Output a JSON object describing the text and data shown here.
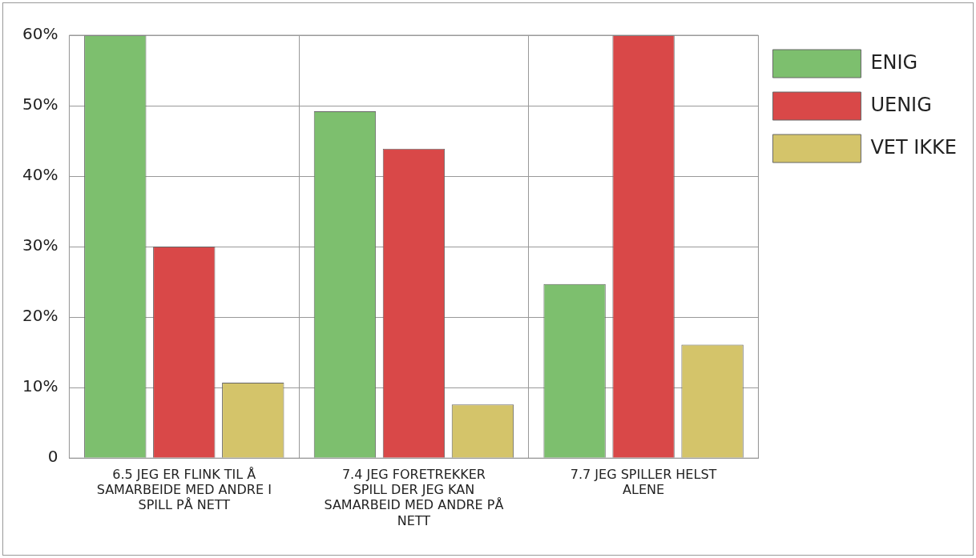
{
  "chart_data": {
    "type": "bar",
    "categories": [
      "6.5 JEG ER FLINK TIL Å SAMARBEIDE MED ANDRE I SPILL PÅ NETT",
      "7.4 JEG FORETREKKER SPILL DER JEG KAN SAMARBEID MED ANDRE PÅ NETT",
      "7.7 JEG SPILLER HELST ALENE"
    ],
    "series": [
      {
        "name": "ENIG",
        "color": "#7dbf6e",
        "values": [
          60,
          49.2,
          24.7
        ]
      },
      {
        "name": "UENIG",
        "color": "#d94848",
        "values": [
          30,
          43.9,
          60
        ]
      },
      {
        "name": "VET IKKE",
        "color": "#d4c46a",
        "values": [
          10.7,
          7.6,
          16.1
        ]
      }
    ],
    "ylim": [
      0,
      60
    ],
    "yticks": [
      {
        "value": 0,
        "label": "0"
      },
      {
        "value": 10,
        "label": "10%"
      },
      {
        "value": 20,
        "label": "20%"
      },
      {
        "value": 30,
        "label": "30%"
      },
      {
        "value": 40,
        "label": "40%"
      },
      {
        "value": 50,
        "label": "50%"
      },
      {
        "value": 60,
        "label": "60%"
      }
    ],
    "grid": true,
    "legend": "right"
  }
}
